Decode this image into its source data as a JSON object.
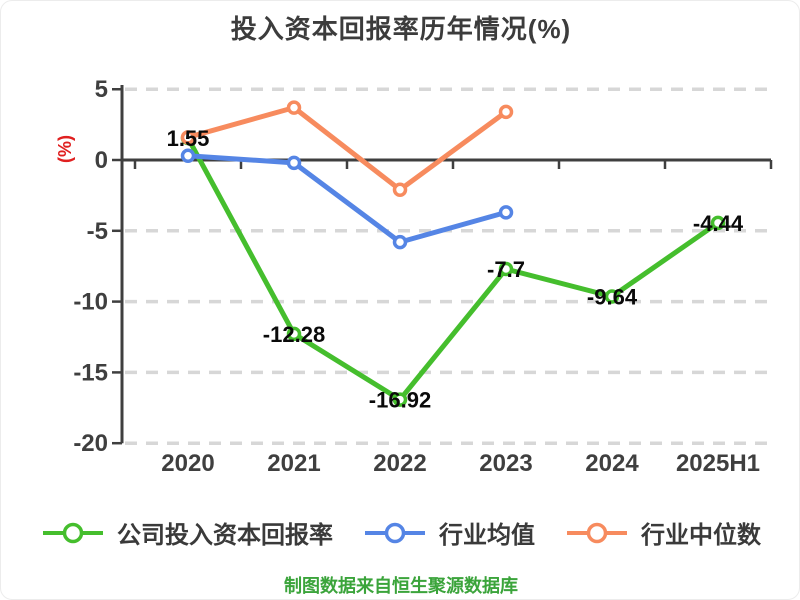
{
  "title": "投入资本回报率历年情况(%)",
  "footer": "制图数据来自恒生聚源数据库",
  "colors": {
    "background": "#FFFFFF",
    "title_text": "#3C3C3C",
    "axis": "#3F3F3F",
    "gridline": "#D7D7D7",
    "tick_label": "#3F3F3F",
    "value_label": "#0A0A0A",
    "y_axis_name": "#E02020",
    "legend_text": "#3A3A3A",
    "footer_text": "#3BA43B"
  },
  "chart_data": {
    "type": "line",
    "title": "投入资本回报率历年情况(%)",
    "categories": [
      "2020",
      "2021",
      "2022",
      "2023",
      "2024",
      "2025H1"
    ],
    "ylabel": "(%)",
    "yticks": [
      5,
      0,
      -5,
      -10,
      -15,
      -20
    ],
    "ylim": [
      -20,
      5
    ],
    "grid": "horizontal dashed gridlines, solid dark zero line",
    "legend_position": "bottom",
    "series": [
      {
        "name": "公司投入资本回报率",
        "color": "#45BE2D",
        "marker": "circle-white-fill",
        "values": [
          1.55,
          -12.28,
          -16.92,
          -7.7,
          -9.64,
          -4.44
        ],
        "point_labels": [
          "1.55",
          "-12.28",
          "-16.92",
          "-7.7",
          "-9.64",
          "-4.44"
        ]
      },
      {
        "name": "行业均值",
        "color": "#5585E5",
        "marker": "circle-white-fill",
        "values": [
          0.3,
          -0.2,
          -5.8,
          -3.7,
          null,
          null
        ]
      },
      {
        "name": "行业中位数",
        "color": "#F78B5E",
        "marker": "circle-white-fill",
        "values": [
          1.6,
          3.7,
          -2.1,
          3.4,
          null,
          null
        ]
      }
    ]
  }
}
